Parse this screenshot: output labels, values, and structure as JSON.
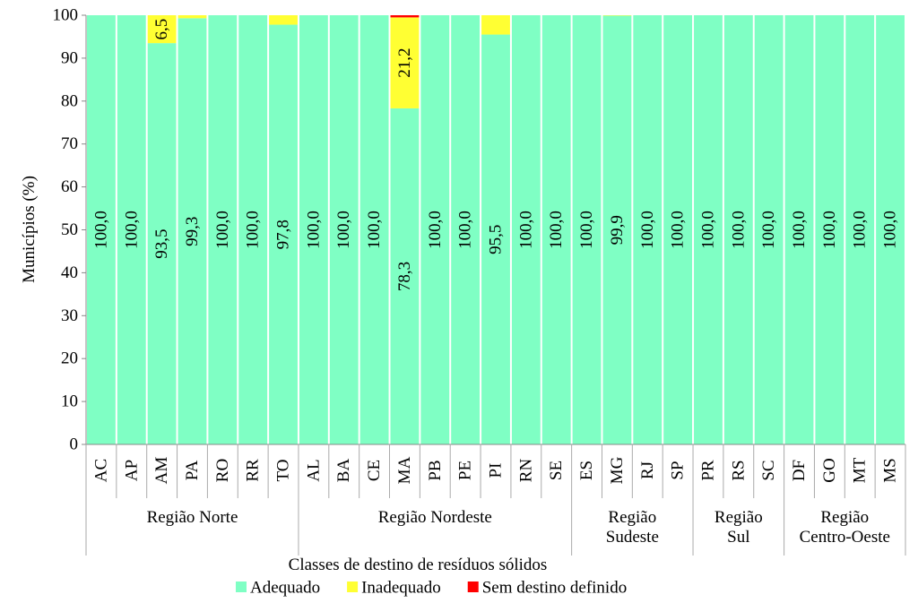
{
  "chart_data": {
    "type": "stacked_bar",
    "ylabel": "Municípios (%)",
    "xlabel": "Classes de destino de resíduos sólidos",
    "groups": [
      {
        "label": "Região Norte",
        "categories": [
          "AC",
          "AP",
          "AM",
          "PA",
          "RO",
          "RR",
          "TO"
        ]
      },
      {
        "label": "Região Nordeste",
        "categories": [
          "AL",
          "BA",
          "CE",
          "MA",
          "PB",
          "PE",
          "PI",
          "RN",
          "SE"
        ]
      },
      {
        "label": "Região Sudeste",
        "categories": [
          "ES",
          "MG",
          "RJ",
          "SP"
        ]
      },
      {
        "label": "Região Sul",
        "categories": [
          "PR",
          "RS",
          "SC"
        ]
      },
      {
        "label": "Região Centro-Oeste",
        "categories": [
          "DF",
          "GO",
          "MT",
          "MS"
        ]
      }
    ],
    "ylim": [
      0,
      100
    ],
    "yticks": [
      0,
      10,
      20,
      30,
      40,
      50,
      60,
      70,
      80,
      90,
      100
    ],
    "series": [
      {
        "name": "Adequado",
        "color": "#7fffc4",
        "values": [
          100,
          100,
          93.5,
          99.3,
          100,
          100,
          97.8,
          100,
          100,
          100,
          78.3,
          100,
          100,
          95.5,
          100,
          100,
          100,
          99.9,
          100,
          100,
          100,
          100,
          100,
          100,
          100,
          100,
          100
        ],
        "value_labels": [
          "100,0",
          "100,0",
          "93,5",
          "99,3",
          "100,0",
          "100,0",
          "97,8",
          "100,0",
          "100,0",
          "100,0",
          "78,3",
          "100,0",
          "100,0",
          "95,5",
          "100,0",
          "100,0",
          "100,0",
          "99,9",
          "100,0",
          "100,0",
          "100,0",
          "100,0",
          "100,0",
          "100,0",
          "100,0",
          "100,0",
          "100,0"
        ]
      },
      {
        "name": "Inadequado",
        "color": "#ffff33",
        "values": [
          0,
          0,
          6.5,
          0.7,
          0,
          0,
          2.2,
          0,
          0,
          0,
          21.2,
          0,
          0,
          4.5,
          0,
          0,
          0,
          0.1,
          0,
          0,
          0,
          0,
          0,
          0,
          0,
          0,
          0
        ],
        "value_labels": [
          null,
          null,
          "6,5",
          null,
          null,
          null,
          null,
          null,
          null,
          null,
          "21,2",
          null,
          null,
          null,
          null,
          null,
          null,
          null,
          null,
          null,
          null,
          null,
          null,
          null,
          null,
          null,
          null
        ]
      },
      {
        "name": "Sem destino definido",
        "color": "#ff0000",
        "values": [
          0,
          0,
          0,
          0,
          0,
          0,
          0,
          0,
          0,
          0,
          0.5,
          0,
          0,
          0,
          0,
          0,
          0,
          0,
          0,
          0,
          0,
          0,
          0,
          0,
          0,
          0,
          0
        ]
      }
    ]
  }
}
